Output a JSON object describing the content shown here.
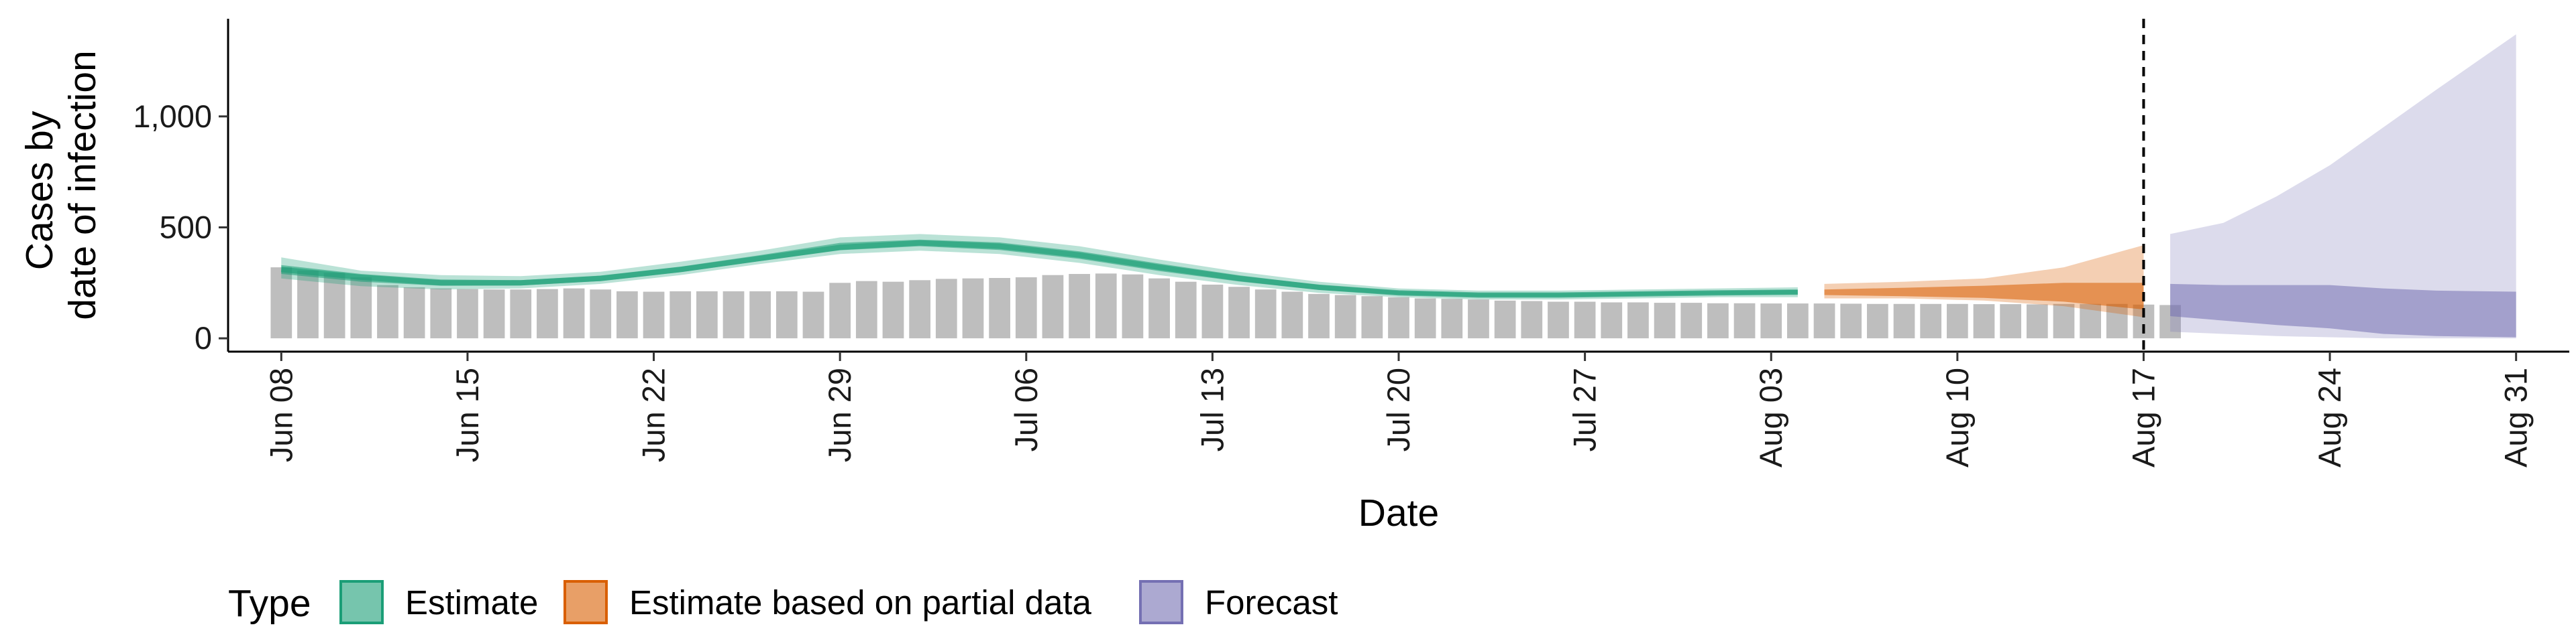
{
  "chart_data": {
    "type": "area",
    "title": "",
    "xlabel": "Date",
    "ylabel": [
      "Cases by",
      "date of infection"
    ],
    "x_start": "2020-06-08",
    "x_end": "2020-08-31",
    "xlim": [
      "2020-06-06",
      "2020-09-02"
    ],
    "ylim": [
      -60,
      1440
    ],
    "x_ticks": [
      {
        "date": "2020-06-08",
        "label": "Jun 08"
      },
      {
        "date": "2020-06-15",
        "label": "Jun 15"
      },
      {
        "date": "2020-06-22",
        "label": "Jun 22"
      },
      {
        "date": "2020-06-29",
        "label": "Jun 29"
      },
      {
        "date": "2020-07-06",
        "label": "Jul 06"
      },
      {
        "date": "2020-07-13",
        "label": "Jul 13"
      },
      {
        "date": "2020-07-20",
        "label": "Jul 20"
      },
      {
        "date": "2020-07-27",
        "label": "Jul 27"
      },
      {
        "date": "2020-08-03",
        "label": "Aug 03"
      },
      {
        "date": "2020-08-10",
        "label": "Aug 10"
      },
      {
        "date": "2020-08-17",
        "label": "Aug 17"
      },
      {
        "date": "2020-08-24",
        "label": "Aug 24"
      },
      {
        "date": "2020-08-31",
        "label": "Aug 31"
      }
    ],
    "y_ticks": [
      {
        "value": 0,
        "label": "0"
      },
      {
        "value": 500,
        "label": "500"
      },
      {
        "value": 1000,
        "label": "1,000"
      }
    ],
    "vline_date": "2020-08-17",
    "grid": false,
    "legend": {
      "title": "Type",
      "position": "bottom",
      "items": [
        {
          "label": "Estimate",
          "color": "#1b9e77"
        },
        {
          "label": "Estimate based on partial data",
          "color": "#d95f02"
        },
        {
          "label": "Forecast",
          "color": "#7570b3"
        }
      ]
    },
    "colors": {
      "bars": "#bebebe",
      "estimate": "#1b9e77",
      "partial": "#d95f02",
      "forecast": "#7570b3"
    },
    "observed_cases": {
      "start_date": "2020-06-08",
      "values": [
        320,
        305,
        295,
        275,
        240,
        230,
        225,
        222,
        220,
        220,
        222,
        225,
        220,
        212,
        210,
        212,
        212,
        212,
        212,
        212,
        210,
        250,
        258,
        255,
        262,
        268,
        270,
        272,
        275,
        285,
        290,
        292,
        288,
        270,
        255,
        242,
        232,
        220,
        210,
        200,
        195,
        190,
        185,
        180,
        178,
        175,
        170,
        168,
        165,
        165,
        162,
        162,
        160,
        160,
        158,
        158,
        157,
        157,
        157,
        156,
        155,
        155,
        155,
        155,
        154,
        154,
        153,
        155,
        155,
        155,
        152,
        150
      ]
    },
    "series": [
      {
        "name": "Estimate",
        "dates": [
          "2020-06-08",
          "2020-06-11",
          "2020-06-14",
          "2020-06-17",
          "2020-06-20",
          "2020-06-23",
          "2020-06-26",
          "2020-06-29",
          "2020-07-02",
          "2020-07-05",
          "2020-07-08",
          "2020-07-11",
          "2020-07-14",
          "2020-07-17",
          "2020-07-20",
          "2020-07-23",
          "2020-07-26",
          "2020-07-29",
          "2020-08-01",
          "2020-08-04"
        ],
        "median": [
          310,
          275,
          250,
          250,
          270,
          310,
          360,
          410,
          430,
          415,
          375,
          320,
          270,
          230,
          205,
          195,
          195,
          200,
          205,
          208
        ],
        "lower_90": [
          270,
          235,
          220,
          225,
          245,
          285,
          335,
          380,
          395,
          380,
          340,
          285,
          240,
          205,
          185,
          175,
          175,
          180,
          185,
          185
        ],
        "upper_90": [
          365,
          305,
          285,
          280,
          300,
          345,
          395,
          455,
          470,
          455,
          415,
          355,
          300,
          255,
          225,
          215,
          215,
          220,
          225,
          230
        ],
        "lower_50": [
          290,
          255,
          237,
          238,
          258,
          298,
          348,
          397,
          415,
          398,
          358,
          303,
          256,
          218,
          196,
          186,
          186,
          191,
          196,
          198
        ],
        "upper_50": [
          330,
          290,
          265,
          262,
          283,
          323,
          375,
          430,
          445,
          432,
          392,
          337,
          284,
          241,
          214,
          204,
          204,
          209,
          214,
          218
        ]
      },
      {
        "name": "Estimate based on partial data",
        "dates": [
          "2020-08-05",
          "2020-08-08",
          "2020-08-11",
          "2020-08-14",
          "2020-08-17"
        ],
        "median": [
          205,
          205,
          200,
          190,
          175
        ],
        "lower_90": [
          180,
          180,
          170,
          145,
          95
        ],
        "upper_90": [
          245,
          255,
          270,
          320,
          420
        ],
        "lower_50": [
          195,
          190,
          182,
          165,
          130
        ],
        "upper_50": [
          220,
          228,
          237,
          250,
          250
        ]
      },
      {
        "name": "Forecast",
        "dates": [
          "2020-08-18",
          "2020-08-20",
          "2020-08-22",
          "2020-08-24",
          "2020-08-26",
          "2020-08-28",
          "2020-08-31"
        ],
        "median": [
          170,
          160,
          160,
          160,
          150,
          140,
          140
        ],
        "lower_90": [
          30,
          20,
          10,
          5,
          0,
          0,
          0
        ],
        "upper_90": [
          470,
          520,
          640,
          780,
          950,
          1120,
          1370
        ],
        "lower_50": [
          100,
          80,
          60,
          45,
          20,
          10,
          5
        ],
        "upper_50": [
          245,
          240,
          240,
          240,
          225,
          215,
          210
        ]
      }
    ]
  }
}
